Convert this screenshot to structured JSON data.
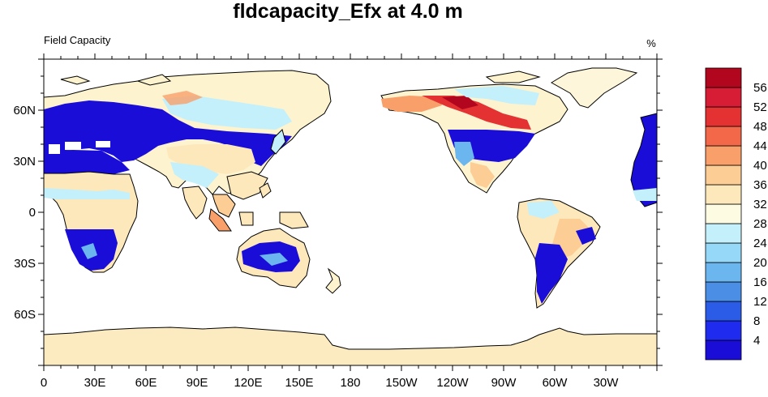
{
  "title": "fldcapacity_Efx at 4.0 m",
  "left_label": "Field Capacity",
  "units_label": "%",
  "map": {
    "projection": "cylindrical-equidistant",
    "lon_ticks": [
      "0",
      "30E",
      "60E",
      "90E",
      "120E",
      "150E",
      "180",
      "150W",
      "120W",
      "90W",
      "60W",
      "30W"
    ],
    "lat_ticks": [
      "60N",
      "30N",
      "0",
      "30S",
      "60S"
    ],
    "ocean_color": "#ffffff",
    "land_mask_color": "#fdf3cf"
  },
  "colorbar": {
    "labels": [
      "4",
      "8",
      "12",
      "16",
      "20",
      "24",
      "28",
      "32",
      "36",
      "40",
      "44",
      "48",
      "52",
      "56"
    ],
    "colors": [
      "#1a0dd8",
      "#1f2bee",
      "#2b5ce8",
      "#4a8ee6",
      "#6cb6f0",
      "#95d8f8",
      "#c4f0fb",
      "#fdfbe2",
      "#fde8bb",
      "#fcce96",
      "#f9a06a",
      "#f4684a",
      "#e43132",
      "#d71c35",
      "#b2061e"
    ]
  }
}
